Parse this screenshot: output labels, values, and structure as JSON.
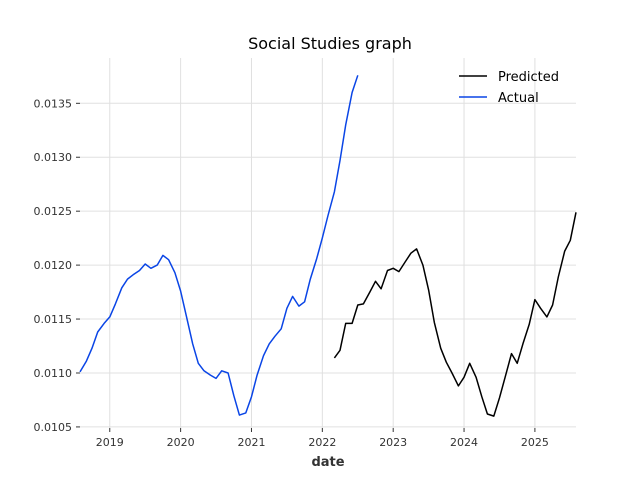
{
  "chart_data": {
    "type": "line",
    "title": "Social Studies graph",
    "xlabel": "date",
    "ylabel": "",
    "xlim": [
      2018.58,
      2025.58
    ],
    "ylim": [
      0.01049,
      0.01392
    ],
    "x_ticks": [
      2019,
      2020,
      2021,
      2022,
      2023,
      2024,
      2025
    ],
    "x_tick_labels": [
      "2019",
      "2020",
      "2021",
      "2022",
      "2023",
      "2024",
      "2025"
    ],
    "y_ticks": [
      0.0105,
      0.011,
      0.0115,
      0.012,
      0.0125,
      0.013,
      0.0135
    ],
    "y_tick_labels": [
      "0.0105",
      "0.0110",
      "0.0115",
      "0.0120",
      "0.0125",
      "0.0130",
      "0.0135"
    ],
    "grid": true,
    "legend_position": "top-right",
    "series": [
      {
        "name": "Predicted",
        "color": "#000000",
        "points": [
          [
            2022.17,
            0.01114
          ],
          [
            2022.25,
            0.01121
          ],
          [
            2022.33,
            0.01146
          ],
          [
            2022.42,
            0.01146
          ],
          [
            2022.5,
            0.01163
          ],
          [
            2022.58,
            0.01164
          ],
          [
            2022.67,
            0.01175
          ],
          [
            2022.75,
            0.01185
          ],
          [
            2022.83,
            0.01178
          ],
          [
            2022.92,
            0.01195
          ],
          [
            2023.0,
            0.01197
          ],
          [
            2023.08,
            0.01194
          ],
          [
            2023.17,
            0.01203
          ],
          [
            2023.25,
            0.01211
          ],
          [
            2023.33,
            0.01215
          ],
          [
            2023.42,
            0.012
          ],
          [
            2023.5,
            0.01177
          ],
          [
            2023.58,
            0.01147
          ],
          [
            2023.67,
            0.01123
          ],
          [
            2023.75,
            0.0111
          ],
          [
            2023.83,
            0.011
          ],
          [
            2023.92,
            0.01088
          ],
          [
            2024.0,
            0.01096
          ],
          [
            2024.08,
            0.01109
          ],
          [
            2024.17,
            0.01096
          ],
          [
            2024.25,
            0.01078
          ],
          [
            2024.33,
            0.01062
          ],
          [
            2024.42,
            0.0106
          ],
          [
            2024.5,
            0.01077
          ],
          [
            2024.58,
            0.01096
          ],
          [
            2024.67,
            0.01118
          ],
          [
            2024.75,
            0.01109
          ],
          [
            2024.83,
            0.01127
          ],
          [
            2024.92,
            0.01145
          ],
          [
            2025.0,
            0.01168
          ],
          [
            2025.08,
            0.0116
          ],
          [
            2025.17,
            0.01152
          ],
          [
            2025.25,
            0.01163
          ],
          [
            2025.33,
            0.01189
          ],
          [
            2025.42,
            0.01213
          ],
          [
            2025.5,
            0.01223
          ],
          [
            2025.58,
            0.01249
          ]
        ]
      },
      {
        "name": "Actual",
        "color": "#0a45e6",
        "points": [
          [
            2018.58,
            0.01101
          ],
          [
            2018.67,
            0.01111
          ],
          [
            2018.75,
            0.01123
          ],
          [
            2018.83,
            0.01138
          ],
          [
            2018.92,
            0.01146
          ],
          [
            2019.0,
            0.01152
          ],
          [
            2019.08,
            0.01164
          ],
          [
            2019.17,
            0.01179
          ],
          [
            2019.25,
            0.01187
          ],
          [
            2019.33,
            0.01191
          ],
          [
            2019.42,
            0.01195
          ],
          [
            2019.5,
            0.01201
          ],
          [
            2019.58,
            0.01197
          ],
          [
            2019.67,
            0.012
          ],
          [
            2019.75,
            0.01209
          ],
          [
            2019.83,
            0.01205
          ],
          [
            2019.92,
            0.01193
          ],
          [
            2020.0,
            0.01176
          ],
          [
            2020.08,
            0.01153
          ],
          [
            2020.17,
            0.01127
          ],
          [
            2020.25,
            0.01109
          ],
          [
            2020.33,
            0.01102
          ],
          [
            2020.42,
            0.01098
          ],
          [
            2020.5,
            0.01095
          ],
          [
            2020.58,
            0.01102
          ],
          [
            2020.67,
            0.011
          ],
          [
            2020.75,
            0.01079
          ],
          [
            2020.83,
            0.01061
          ],
          [
            2020.92,
            0.01063
          ],
          [
            2021.0,
            0.01078
          ],
          [
            2021.08,
            0.01098
          ],
          [
            2021.17,
            0.01116
          ],
          [
            2021.25,
            0.01127
          ],
          [
            2021.33,
            0.01134
          ],
          [
            2021.42,
            0.01141
          ],
          [
            2021.5,
            0.0116
          ],
          [
            2021.58,
            0.01171
          ],
          [
            2021.67,
            0.01162
          ],
          [
            2021.75,
            0.01166
          ],
          [
            2021.83,
            0.01187
          ],
          [
            2021.92,
            0.01206
          ],
          [
            2022.0,
            0.01225
          ],
          [
            2022.08,
            0.01246
          ],
          [
            2022.17,
            0.01268
          ],
          [
            2022.25,
            0.01297
          ],
          [
            2022.33,
            0.0133
          ],
          [
            2022.42,
            0.0136
          ],
          [
            2022.5,
            0.01376
          ]
        ]
      }
    ]
  }
}
